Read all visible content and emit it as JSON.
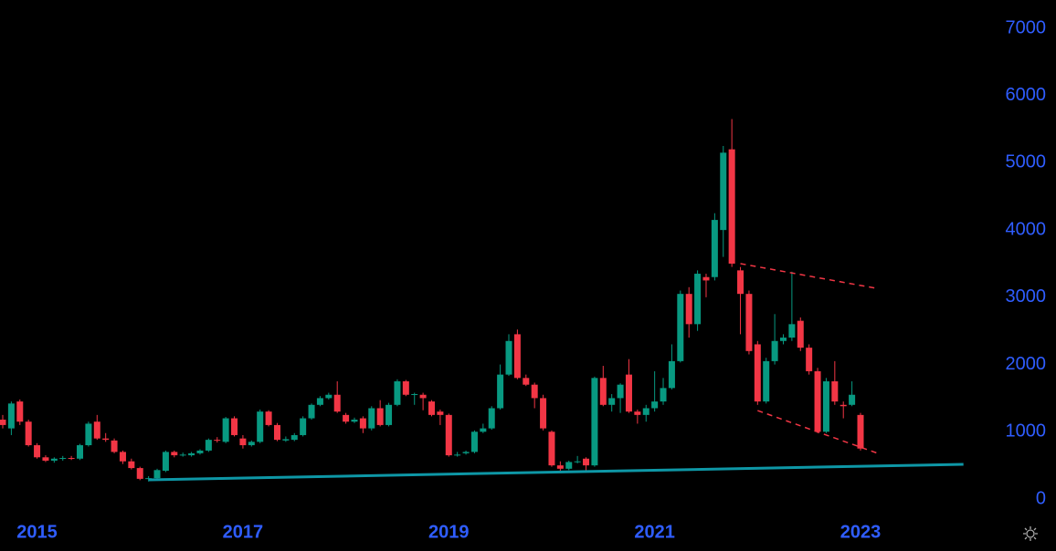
{
  "chart_data": {
    "type": "candlestick",
    "categories": [
      null,
      null,
      null,
      null,
      "2015",
      null,
      null,
      null,
      null,
      null,
      null,
      null,
      null,
      null,
      null,
      null,
      null,
      null,
      null,
      null,
      null,
      null,
      null,
      null,
      null,
      null,
      null,
      null,
      "2017",
      null,
      null,
      null,
      null,
      null,
      null,
      null,
      null,
      null,
      null,
      null,
      null,
      null,
      null,
      null,
      null,
      null,
      null,
      null,
      null,
      null,
      null,
      null,
      "2019",
      null,
      null,
      null,
      null,
      null,
      null,
      null,
      null,
      null,
      null,
      null,
      null,
      null,
      null,
      null,
      null,
      null,
      null,
      null,
      null,
      null,
      null,
      null,
      "2021",
      null,
      null,
      null,
      null,
      null,
      null,
      null,
      null,
      null,
      null,
      null,
      null,
      null,
      null,
      null,
      null,
      null,
      null,
      null,
      null,
      null,
      null,
      null,
      "2023"
    ],
    "open": [
      1180,
      1050,
      1450,
      1150,
      800,
      620,
      570,
      600,
      610,
      600,
      800,
      1150,
      900,
      870,
      700,
      560,
      460,
      300,
      310,
      420,
      700,
      650,
      650,
      680,
      720,
      880,
      850,
      1200,
      900,
      800,
      850,
      1300,
      1100,
      870,
      880,
      950,
      1200,
      1400,
      1500,
      1550,
      1250,
      1150,
      1200,
      1050,
      1350,
      1100,
      1400,
      1750,
      1550,
      1550,
      1450,
      1300,
      1250,
      650,
      680,
      700,
      1000,
      1050,
      1350,
      1850,
      2450,
      1800,
      1700,
      1500,
      1000,
      500,
      450,
      550,
      600,
      500,
      1800,
      1400,
      1500,
      1850,
      1300,
      1250,
      1350,
      1450,
      1650,
      2050,
      3050,
      2600,
      3300,
      3300,
      4000,
      5200,
      3400,
      3050,
      2300,
      1450,
      2050,
      2350,
      2400,
      2650,
      2250,
      1900,
      1000,
      1750,
      1400,
      1400,
      1250
    ],
    "high": [
      1250,
      1450,
      1480,
      1180,
      830,
      650,
      620,
      640,
      640,
      820,
      1150,
      1250,
      980,
      900,
      720,
      600,
      480,
      340,
      450,
      720,
      720,
      690,
      700,
      740,
      900,
      920,
      1220,
      1230,
      950,
      870,
      1330,
      1320,
      1130,
      930,
      980,
      1230,
      1420,
      1530,
      1580,
      1750,
      1280,
      1210,
      1230,
      1380,
      1470,
      1430,
      1780,
      1770,
      1580,
      1580,
      1470,
      1330,
      1270,
      700,
      720,
      1020,
      1120,
      1380,
      2000,
      2450,
      2520,
      1850,
      1730,
      1550,
      1020,
      560,
      570,
      640,
      620,
      1820,
      1980,
      1560,
      1720,
      2080,
      1330,
      1400,
      1900,
      1800,
      2300,
      3100,
      3150,
      3400,
      3350,
      4250,
      5250,
      5650,
      3450,
      3100,
      2350,
      2100,
      2750,
      2450,
      3380,
      2700,
      2300,
      1950,
      1800,
      2050,
      1450,
      1750,
      1280
    ],
    "low": [
      1050,
      950,
      1100,
      780,
      600,
      550,
      540,
      570,
      580,
      580,
      780,
      880,
      850,
      680,
      520,
      440,
      280,
      260,
      290,
      400,
      620,
      630,
      630,
      660,
      700,
      840,
      830,
      930,
      750,
      780,
      830,
      1080,
      860,
      850,
      860,
      930,
      1180,
      1380,
      1480,
      1280,
      1120,
      1130,
      980,
      1020,
      1080,
      1080,
      1380,
      1530,
      1400,
      1320,
      1230,
      1100,
      630,
      630,
      660,
      680,
      980,
      1030,
      1330,
      1830,
      1780,
      1680,
      1350,
      1020,
      480,
      420,
      430,
      530,
      420,
      480,
      1380,
      1300,
      1280,
      1280,
      1120,
      1150,
      1300,
      1400,
      1630,
      2030,
      2400,
      2500,
      3000,
      3250,
      3600,
      3450,
      2450,
      2150,
      1400,
      1420,
      2000,
      2300,
      2350,
      2200,
      1850,
      980,
      980,
      1400,
      1200,
      1380,
      720
    ],
    "close": [
      1100,
      1420,
      1150,
      800,
      620,
      570,
      600,
      610,
      600,
      800,
      1120,
      900,
      880,
      700,
      560,
      460,
      300,
      310,
      430,
      700,
      650,
      660,
      680,
      720,
      880,
      870,
      1200,
      950,
      800,
      850,
      1300,
      1100,
      880,
      890,
      950,
      1200,
      1400,
      1500,
      1550,
      1300,
      1150,
      1180,
      1050,
      1350,
      1100,
      1400,
      1750,
      1550,
      1560,
      1500,
      1250,
      1250,
      650,
      660,
      700,
      1000,
      1050,
      1350,
      1850,
      2350,
      1800,
      1700,
      1500,
      1050,
      500,
      450,
      550,
      560,
      500,
      1800,
      1400,
      1500,
      1700,
      1300,
      1250,
      1350,
      1450,
      1650,
      2050,
      3050,
      2600,
      3350,
      3250,
      4150,
      5150,
      3500,
      3050,
      2200,
      1450,
      2050,
      2350,
      2400,
      2600,
      2250,
      1900,
      1000,
      1750,
      1450,
      1380,
      1550,
      750
    ],
    "up_color": "#089981",
    "down_color": "#f23645",
    "label_color": "#2f5dff",
    "ylim": [
      0,
      7000
    ],
    "yticks": [
      0,
      1000,
      2000,
      3000,
      4000,
      5000,
      6000,
      7000
    ],
    "trendlines": [
      {
        "x": [
          17,
          112
        ],
        "values": [
          285,
          515
        ],
        "color": "#0e97a6",
        "dashed": false
      },
      {
        "x": [
          86,
          102
        ],
        "values": [
          3500,
          3130
        ],
        "color": "#f23645",
        "dashed": true
      },
      {
        "x": [
          88,
          102
        ],
        "values": [
          1315,
          680
        ],
        "color": "#f23645",
        "dashed": true
      }
    ]
  }
}
